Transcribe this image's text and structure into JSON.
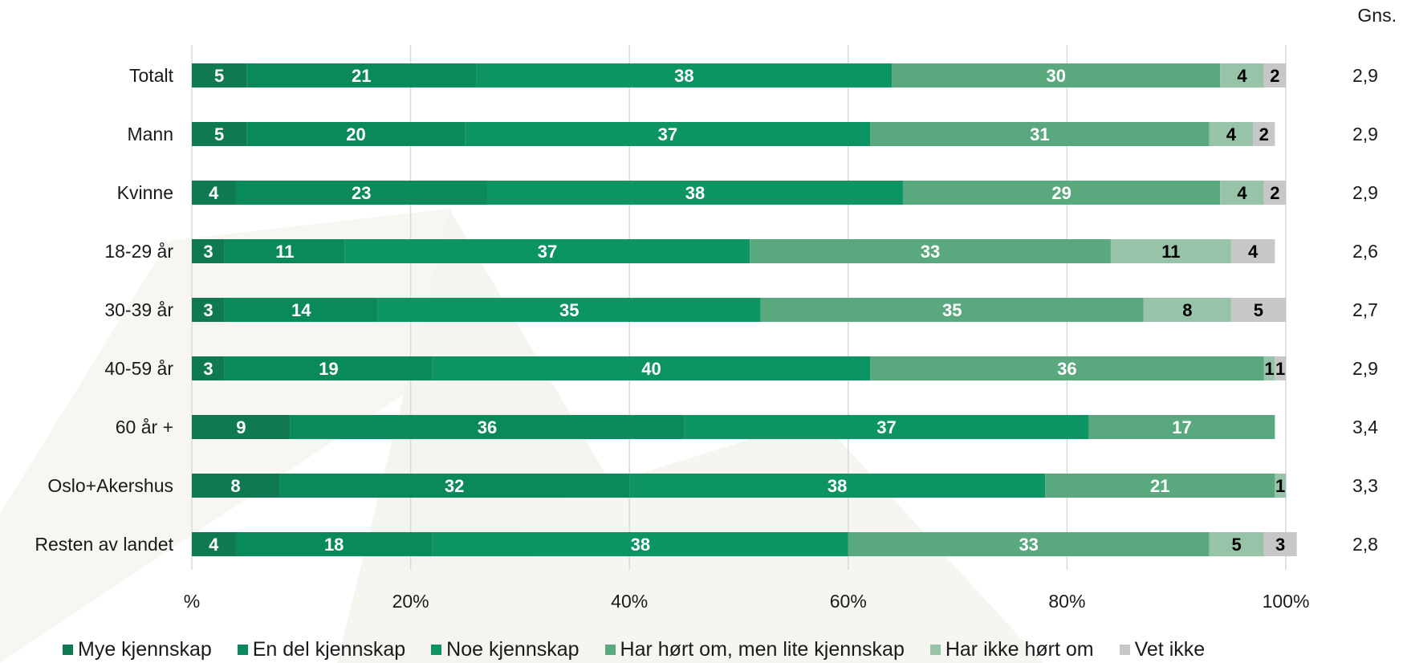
{
  "chart_data": {
    "type": "bar",
    "orientation": "horizontal",
    "stacked": true,
    "categories": [
      "Totalt",
      "Mann",
      "Kvinne",
      "18-29 år",
      "30-39 år",
      "40-59 år",
      "60 år +",
      "Oslo+Akershus",
      "Resten av landet"
    ],
    "series": [
      {
        "name": "Mye kjennskap",
        "color": "#0f7a52",
        "label_color": "#ffffff",
        "values": [
          5,
          5,
          4,
          3,
          3,
          3,
          9,
          8,
          4
        ]
      },
      {
        "name": "En del kjennskap",
        "color": "#0a8a5a",
        "label_color": "#ffffff",
        "values": [
          21,
          20,
          23,
          11,
          14,
          19,
          36,
          32,
          18
        ]
      },
      {
        "name": "Noe kjennskap",
        "color": "#0c9463",
        "label_color": "#ffffff",
        "values": [
          38,
          37,
          38,
          37,
          35,
          40,
          37,
          38,
          38
        ]
      },
      {
        "name": "Har hørt om, men lite kjennskap",
        "color": "#5aa97e",
        "label_color": "#ffffff",
        "values": [
          30,
          31,
          29,
          33,
          35,
          36,
          17,
          21,
          33
        ]
      },
      {
        "name": "Har ikke hørt om",
        "color": "#97c4a9",
        "label_color": "#000000",
        "values": [
          4,
          4,
          4,
          11,
          8,
          1,
          null,
          1,
          5
        ]
      },
      {
        "name": "Vet ikke",
        "color": "#c7c7c7",
        "label_color": "#000000",
        "values": [
          2,
          2,
          2,
          4,
          5,
          1,
          null,
          null,
          3
        ]
      }
    ],
    "xlim": [
      0,
      100
    ],
    "x_ticks": [
      "%",
      "20%",
      "40%",
      "60%",
      "80%",
      "100%"
    ],
    "grid": true,
    "legend_position": "bottom",
    "extra_column": {
      "header": "Gns.",
      "values": [
        "2,9",
        "2,9",
        "2,9",
        "2,6",
        "2,7",
        "2,9",
        "3,4",
        "3,3",
        "2,8"
      ]
    }
  }
}
